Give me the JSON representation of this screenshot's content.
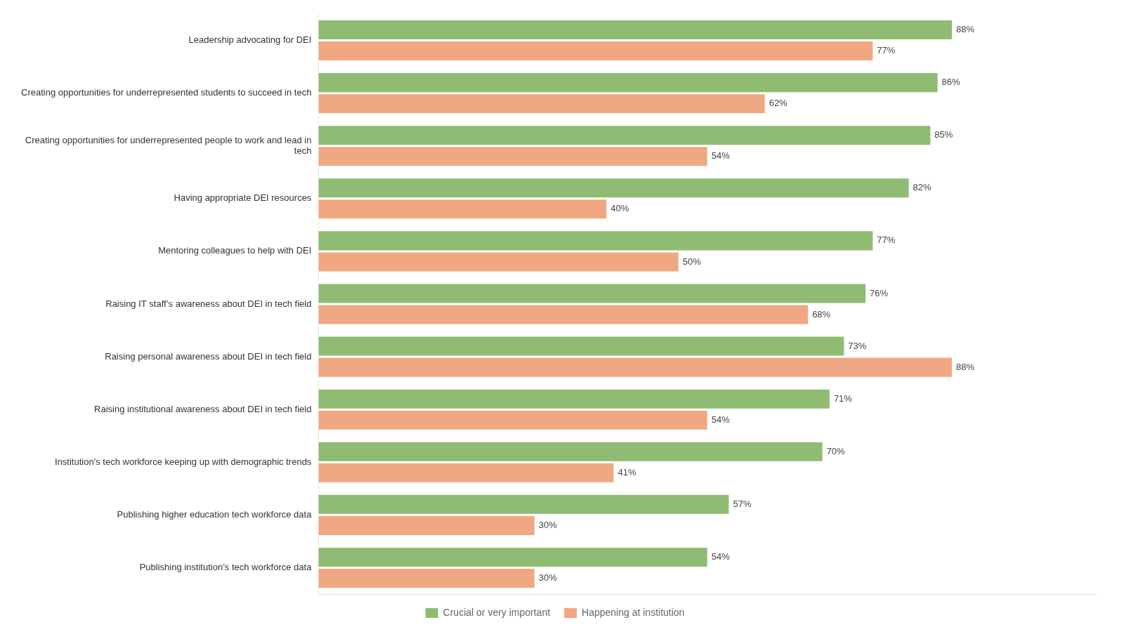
{
  "chart_data": {
    "type": "bar",
    "orientation": "horizontal",
    "categories": [
      "Leadership advocating for DEI",
      "Creating opportunities for underrepresented students to succeed in tech",
      "Creating opportunities for underrepresented people to work and lead in\ntech",
      "Having appropriate DEI resources",
      "Mentoring colleagues to help with DEI",
      "Raising IT staff’s awareness about DEI in tech field",
      "Raising personal awareness about DEI in tech field",
      "Raising institutional awareness about DEI in tech field",
      "Institution’s tech workforce keeping up with demographic trends",
      "Publishing higher education tech workforce data",
      "Publishing institution’s tech workforce data"
    ],
    "series": [
      {
        "name": "Crucial or very important",
        "color": "#8fbc72",
        "values": [
          88,
          86,
          85,
          82,
          77,
          76,
          73,
          71,
          70,
          57,
          54
        ],
        "value_labels": [
          "88%",
          "86%",
          "85%",
          "82%",
          "77%",
          "76%",
          "73%",
          "71%",
          "70%",
          "57%",
          "54%"
        ]
      },
      {
        "name": "Happening at institution",
        "color": "#f0a882",
        "values": [
          77,
          62,
          54,
          40,
          50,
          68,
          88,
          54,
          41,
          30,
          30
        ],
        "value_labels": [
          "77%",
          "62%",
          "54%",
          "40%",
          "50%",
          "68%",
          "88%",
          "54%",
          "41%",
          "30%",
          "30%"
        ]
      }
    ],
    "xlim": [
      0,
      108
    ],
    "grid": false,
    "legend": "bottom",
    "data_labels": true,
    "tick_labels": "y"
  }
}
